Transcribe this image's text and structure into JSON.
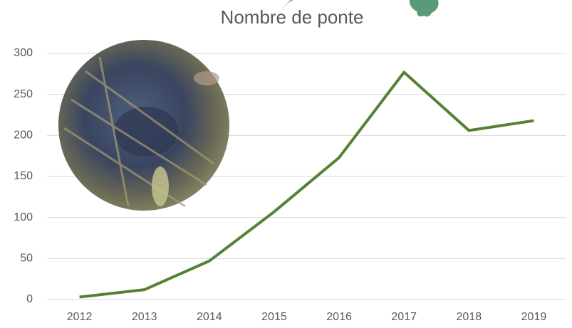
{
  "chart_data": {
    "type": "line",
    "title": "Nombre de ponte",
    "categories": [
      "2012",
      "2013",
      "2014",
      "2015",
      "2016",
      "2017",
      "2018",
      "2019"
    ],
    "series": [
      {
        "name": "Nombre de ponte",
        "color": "#548235",
        "values": [
          3,
          12,
          47,
          107,
          173,
          277,
          206,
          218
        ]
      }
    ],
    "ylim": [
      0,
      300
    ],
    "yticks": [
      0,
      50,
      100,
      150,
      200,
      250,
      300
    ],
    "grid": true
  }
}
